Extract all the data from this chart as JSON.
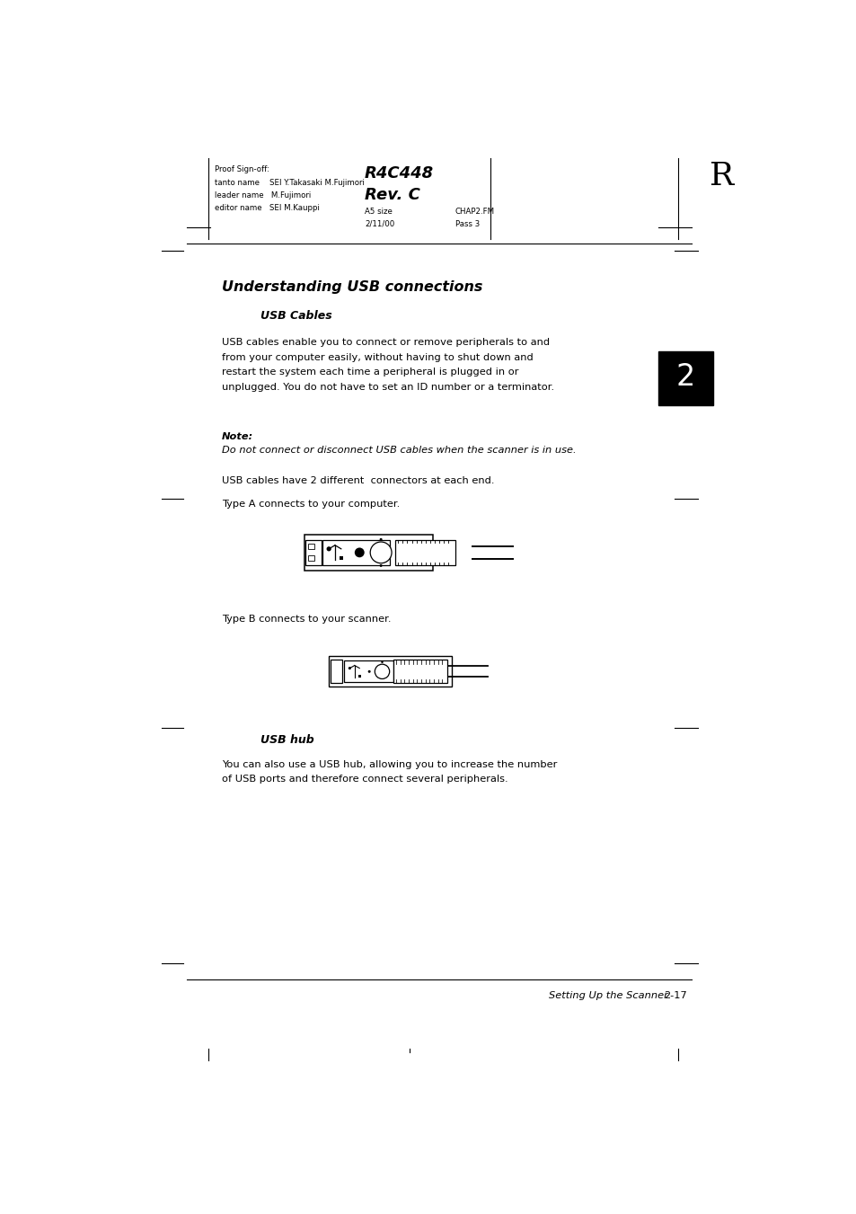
{
  "bg_color": "#ffffff",
  "page_width": 9.54,
  "page_height": 13.51,
  "header_proof": "Proof Sign-off:",
  "header_tanto": "tanto name    SEI Y.Takasaki M.Fujimori",
  "header_leader": "leader name   M.Fujimori",
  "header_editor": "editor name   SEI M.Kauppi",
  "header_title_line1": "R4C448",
  "header_title_line2": "Rev. C",
  "header_a5": "A5 size",
  "header_date": "2/11/00",
  "header_chap": "CHAP2.FM",
  "header_pass": "Pass 3",
  "header_R": "R",
  "section_title": "Understanding USB connections",
  "subsection1": "USB Cables",
  "para1_lines": [
    "USB cables enable you to connect or remove peripherals to and",
    "from your computer easily, without having to shut down and",
    "restart the system each time a peripheral is plugged in or",
    "unplugged. You do not have to set an ID number or a terminator."
  ],
  "note_label": "Note:",
  "note_text": "Do not connect or disconnect USB cables when the scanner is in use.",
  "para2": "USB cables have 2 different  connectors at each end.",
  "para3": "Type A connects to your computer.",
  "para4": "Type B connects to your scanner.",
  "subsection2": "USB hub",
  "para5_lines": [
    "You can also use a USB hub, allowing you to increase the number",
    "of USB ports and therefore connect several peripherals."
  ],
  "footer_italic": "Setting Up the Scanner",
  "footer_page": "2-17",
  "chapter_num": "2"
}
